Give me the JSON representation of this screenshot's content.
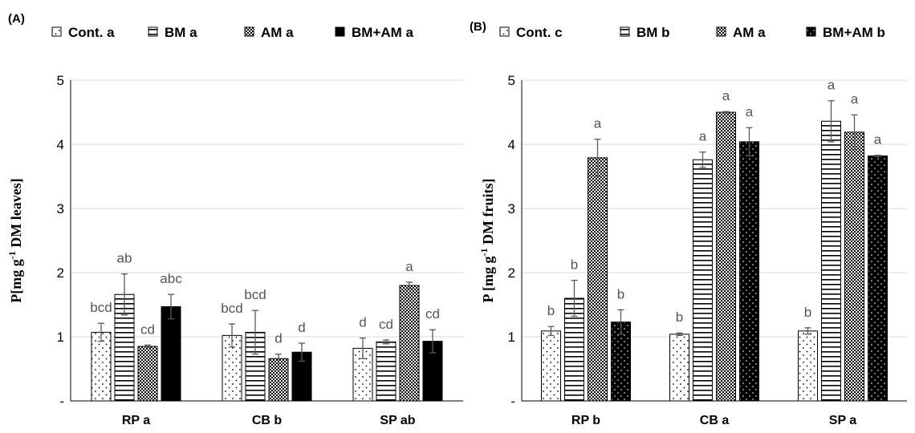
{
  "chart_data": [
    {
      "type": "bar",
      "panel_label": "(A)",
      "ylabel": {
        "prefix": "P[mg g",
        "sup": "-1",
        "suffix": " DM leaves]"
      },
      "ylim": [
        0,
        5
      ],
      "yticks": [
        "-",
        "1",
        "2",
        "3",
        "4",
        "5"
      ],
      "grid": true,
      "legend_position": "top",
      "categories": [
        "RP a",
        "CB b",
        "SP ab"
      ],
      "series": [
        {
          "name": "Cont. a",
          "pattern": "dots",
          "values": [
            1.07,
            1.02,
            0.82
          ],
          "errors": [
            0.14,
            0.18,
            0.16
          ],
          "labels": [
            "bcd",
            "bcd",
            "d"
          ]
        },
        {
          "name": "BM a",
          "pattern": "hlines",
          "values": [
            1.66,
            1.07,
            0.92
          ],
          "errors": [
            0.32,
            0.34,
            0.03
          ],
          "labels": [
            "ab",
            "bcd",
            "cd"
          ]
        },
        {
          "name": "AM a",
          "pattern": "checker",
          "values": [
            0.85,
            0.66,
            1.8
          ],
          "errors": [
            0.02,
            0.07,
            0.05
          ],
          "labels": [
            "cd",
            "d",
            "a"
          ]
        },
        {
          "name": "BM+AM a",
          "pattern": "solid",
          "values": [
            1.47,
            0.76,
            0.93
          ],
          "errors": [
            0.19,
            0.14,
            0.18
          ],
          "labels": [
            "abc",
            "d",
            "cd"
          ]
        }
      ]
    },
    {
      "type": "bar",
      "panel_label": "(B)",
      "ylabel": {
        "prefix": "P [mg g",
        "sup": "-1",
        "suffix": " DM  fruits]"
      },
      "ylim": [
        0,
        5
      ],
      "yticks": [
        "-",
        "1",
        "2",
        "3",
        "4",
        "5"
      ],
      "grid": true,
      "legend_position": "top",
      "categories": [
        "RP b",
        "CB a",
        "SP a"
      ],
      "series": [
        {
          "name": "Cont. c",
          "pattern": "dots",
          "values": [
            1.09,
            1.04,
            1.09
          ],
          "errors": [
            0.07,
            0.02,
            0.05
          ],
          "labels": [
            "b",
            "b",
            "b"
          ]
        },
        {
          "name": "BM b",
          "pattern": "hlines",
          "values": [
            1.6,
            3.76,
            4.36
          ],
          "errors": [
            0.28,
            0.12,
            0.32
          ],
          "labels": [
            "b",
            "a",
            "a"
          ]
        },
        {
          "name": "AM a",
          "pattern": "checker",
          "values": [
            3.79,
            4.5,
            4.19
          ],
          "errors": [
            0.29,
            0.01,
            0.27
          ],
          "labels": [
            "a",
            "a",
            "a"
          ]
        },
        {
          "name": "BM+AM b",
          "pattern": "solid_dots",
          "values": [
            1.23,
            4.04,
            3.82
          ],
          "errors": [
            0.19,
            0.22,
            0.01
          ],
          "labels": [
            "b",
            "a",
            "a"
          ]
        }
      ]
    }
  ]
}
